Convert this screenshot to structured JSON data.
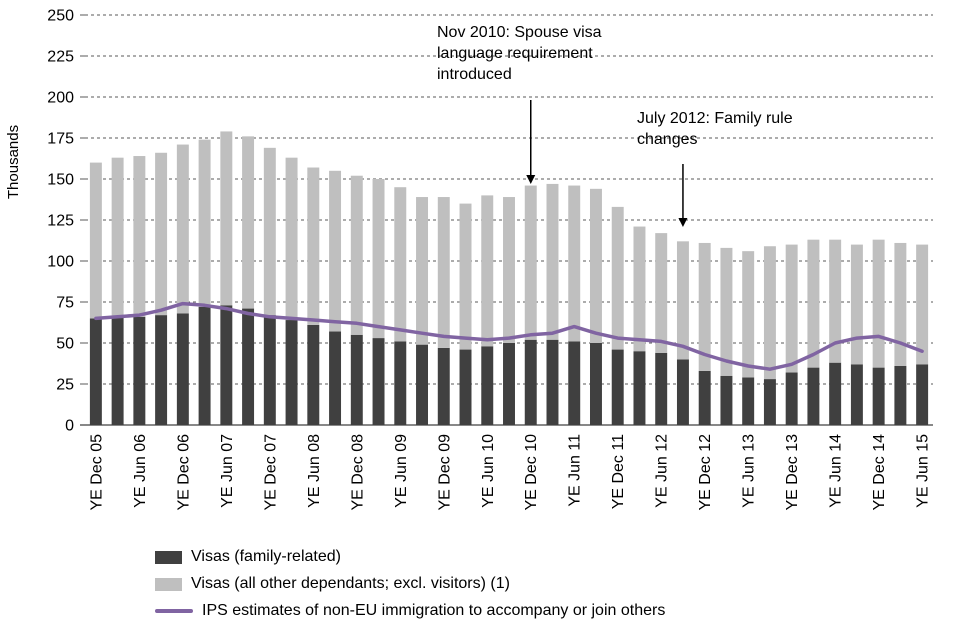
{
  "chart_data": {
    "type": "bar",
    "subtype": "stacked-bars-with-line-overlay",
    "title": "",
    "xlabel": "",
    "ylabel": "Thousands",
    "ylim": [
      0,
      250
    ],
    "ytick_step": 25,
    "grid": "dashed-horizontal",
    "legend_position": "bottom-left",
    "label_every": 2,
    "x_labels_shown": [
      "YE Dec 05",
      "YE Jun 06",
      "YE Dec 06",
      "YE Jun 07",
      "YE Dec 07",
      "YE Jun 08",
      "YE Dec 08",
      "YE Jun 09",
      "YE Dec 09",
      "YE Jun 10",
      "YE Dec 10",
      "YE Jun 11",
      "YE Dec 11",
      "YE Jun 12",
      "YE Dec 12",
      "YE Jun 13",
      "YE Dec 13",
      "YE Jun 14",
      "YE Dec 14",
      "YE Jun 15"
    ],
    "series": [
      {
        "name": "Visas (family-related)",
        "type": "bar",
        "color": "#404040",
        "values": [
          65,
          66,
          66,
          67,
          68,
          72,
          73,
          71,
          67,
          64,
          61,
          57,
          55,
          53,
          51,
          49,
          47,
          46,
          48,
          50,
          52,
          52,
          51,
          50,
          46,
          45,
          44,
          40,
          33,
          30,
          29,
          28,
          32,
          35,
          38,
          37,
          35,
          36,
          37
        ]
      },
      {
        "name": "Visas (all other dependants; excl. visitors) (1)",
        "type": "bar",
        "color": "#bfbfbf",
        "values": [
          95,
          97,
          98,
          99,
          103,
          102,
          106,
          105,
          102,
          99,
          96,
          98,
          97,
          97,
          94,
          90,
          92,
          89,
          92,
          89,
          94,
          95,
          95,
          94,
          87,
          76,
          73,
          72,
          78,
          78,
          77,
          81,
          78,
          78,
          75,
          73,
          78,
          75,
          73
        ]
      },
      {
        "name": "IPS estimates of non-EU immigration to accompany or join others",
        "type": "line",
        "color": "#8064a2",
        "values": [
          65,
          66,
          67,
          70,
          74,
          73,
          71,
          68,
          66,
          65,
          64,
          63,
          62,
          60,
          58,
          56,
          54,
          53,
          52,
          53,
          55,
          56,
          60,
          56,
          53,
          52,
          51,
          48,
          43,
          39,
          36,
          34,
          37,
          43,
          50,
          53,
          54,
          50,
          45
        ]
      }
    ],
    "annotations": [
      {
        "text": "Nov 2010: Spouse visa language requirement introduced",
        "arrow_index": 20
      },
      {
        "text": "July 2012: Family rule changes",
        "arrow_index": 27
      }
    ]
  }
}
